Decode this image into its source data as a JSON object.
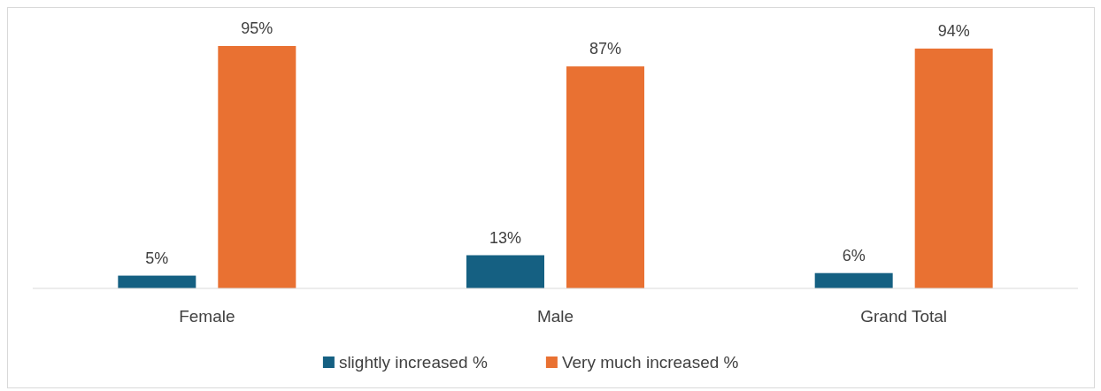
{
  "chart_data": {
    "type": "bar",
    "categories": [
      "Female",
      "Male",
      "Grand Total"
    ],
    "series": [
      {
        "name": "slightly increased %",
        "color": "#156082",
        "values": [
          5,
          13,
          6
        ],
        "value_labels": [
          "5%",
          "13%",
          "6%"
        ]
      },
      {
        "name": "Very much increased %",
        "color": "#e97132",
        "values": [
          95,
          87,
          94
        ],
        "value_labels": [
          "95%",
          "87%",
          "94%"
        ]
      }
    ],
    "legend": "bottom"
  }
}
